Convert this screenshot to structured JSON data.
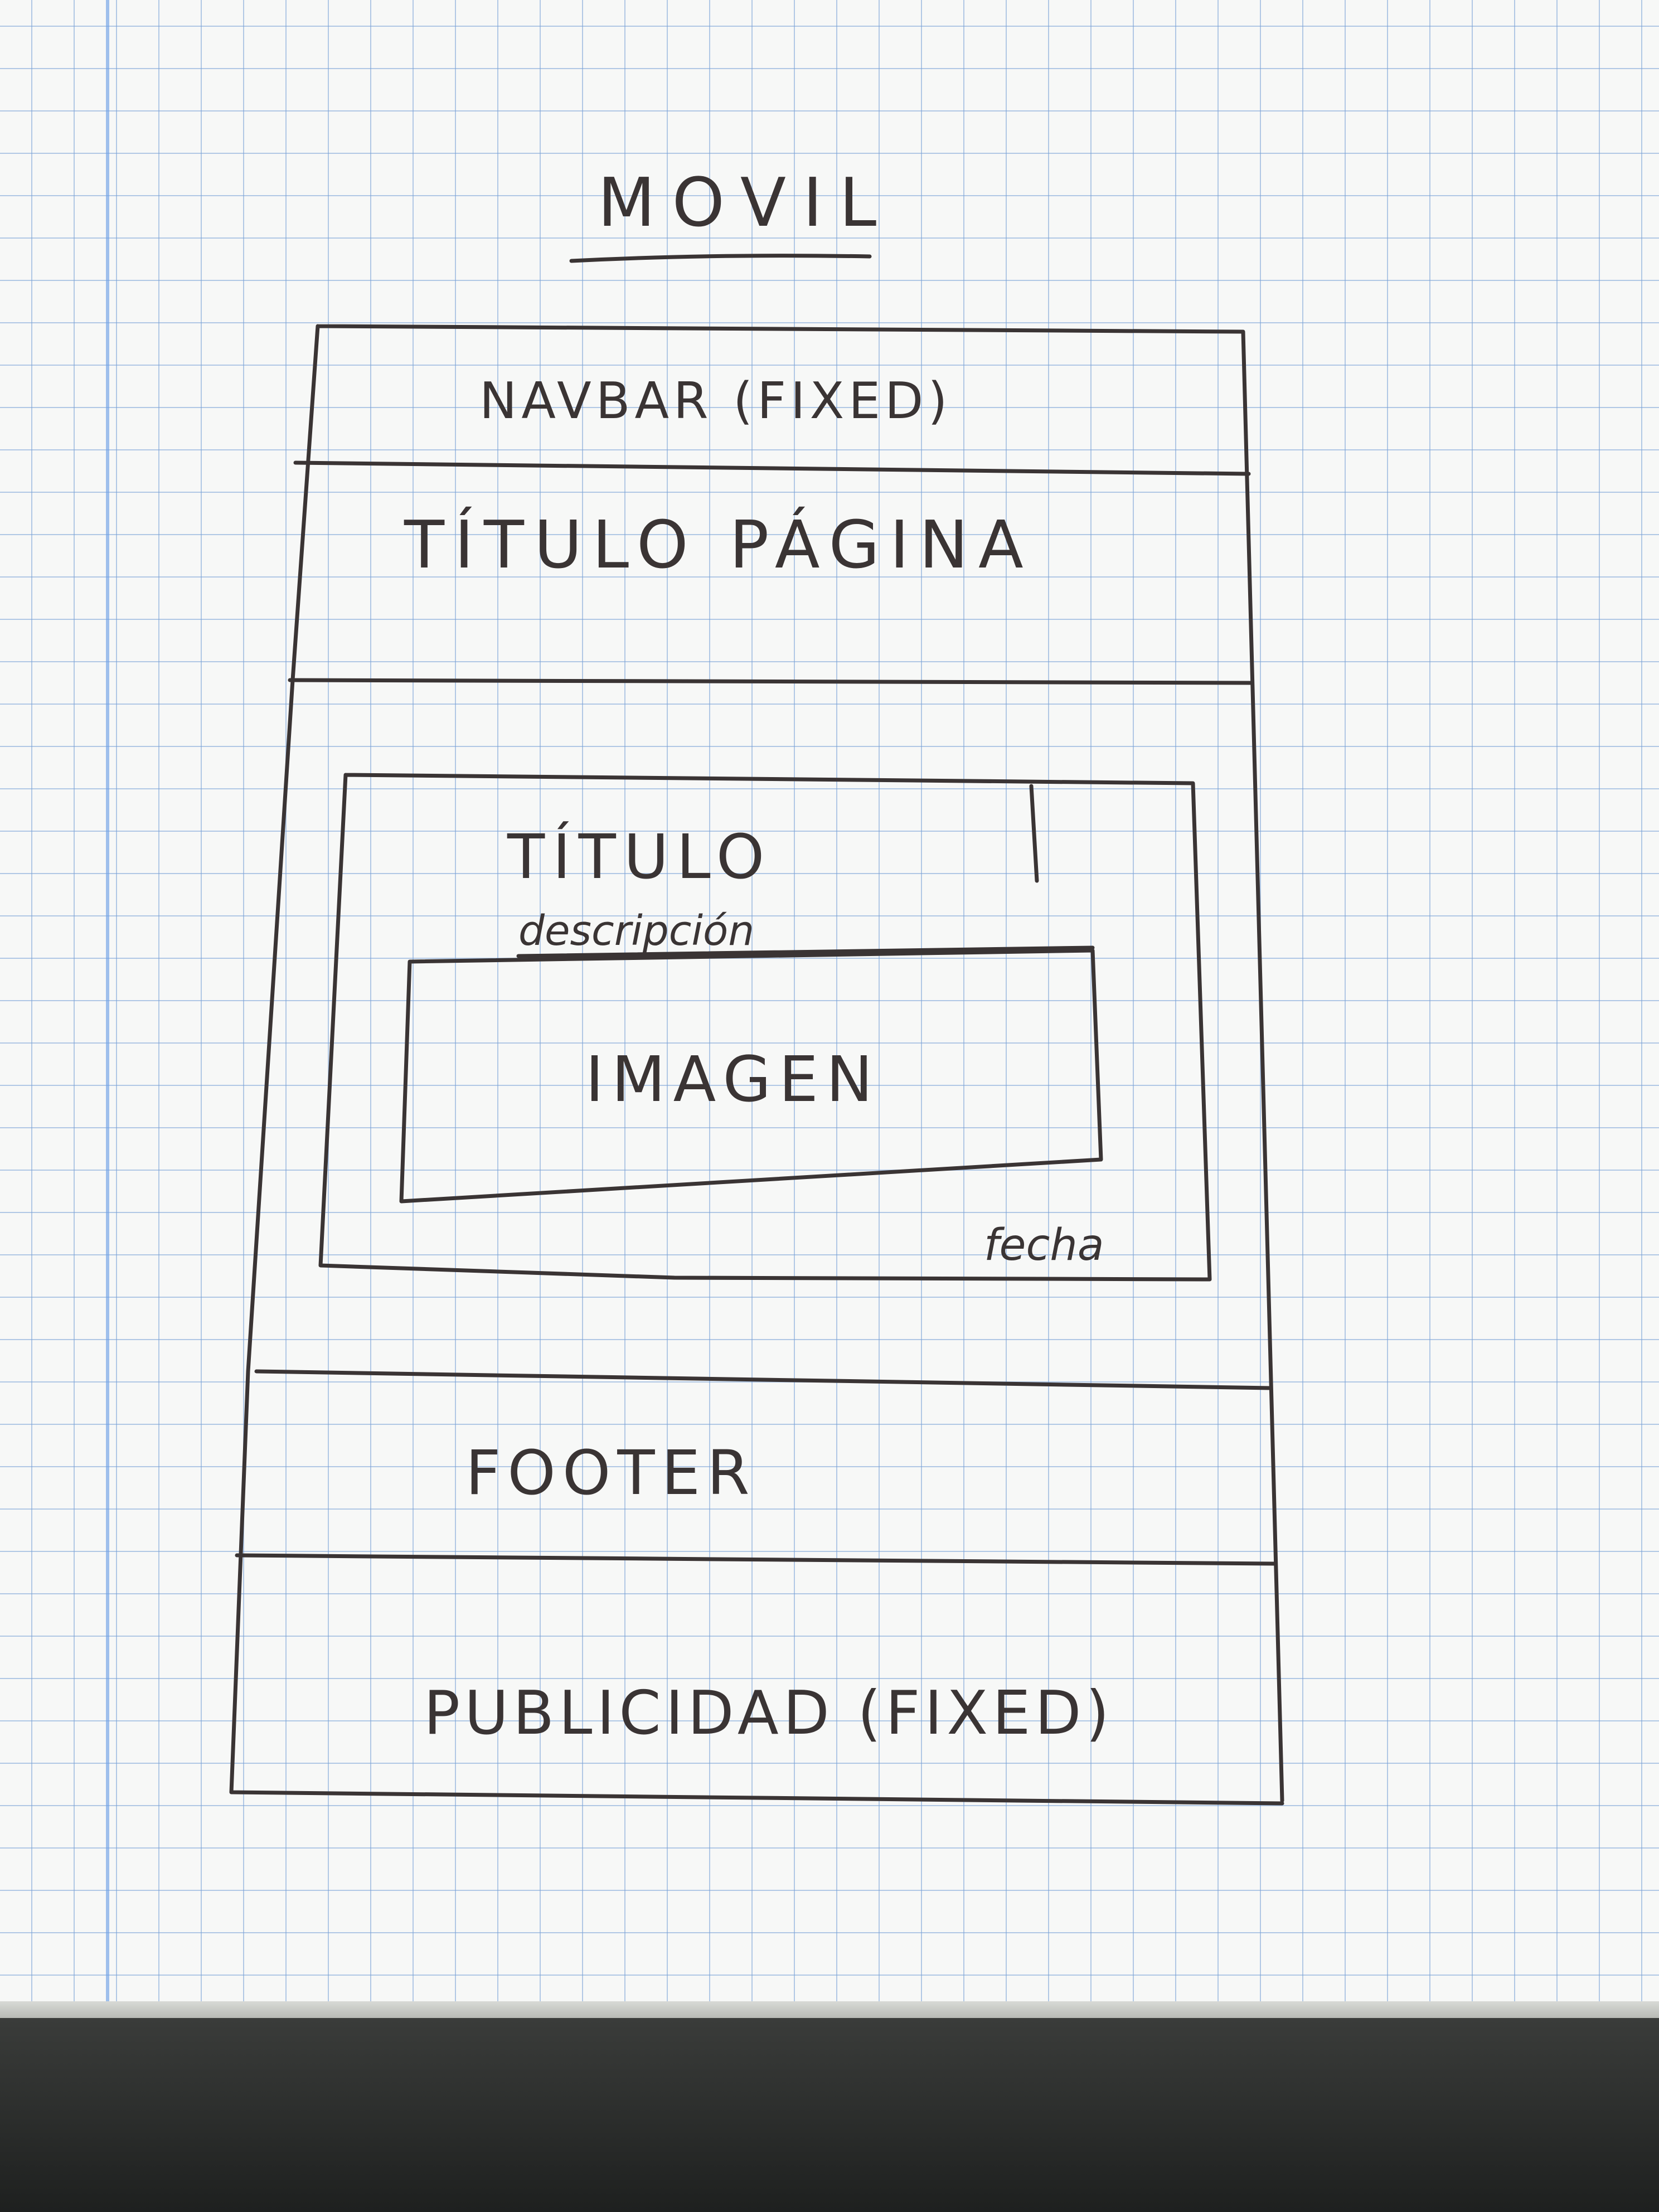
{
  "title": "MOVIL",
  "navbar": "NAVBAR (FIXED)",
  "page_title": "TÍTULO PÁGINA",
  "card": {
    "title": "TÍTULO",
    "description": "descripción",
    "image": "IMAGEN",
    "date": "fecha"
  },
  "footer": "FOOTER",
  "ads": "PUBLICIDAD (FIXED)",
  "colors": {
    "ink": "#3a3434",
    "grid": "#78a0d7",
    "paper": "#f7f8f7"
  }
}
